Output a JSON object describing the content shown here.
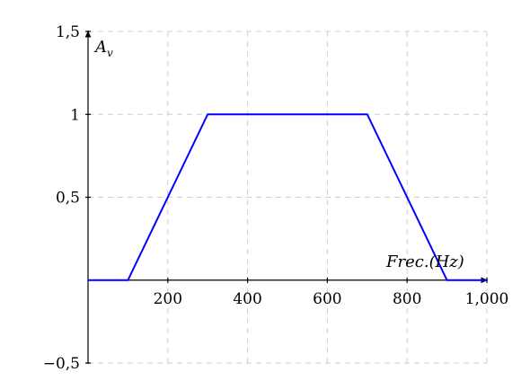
{
  "chart_data": {
    "type": "line",
    "title": "",
    "xlabel_main": "Frec.",
    "xlabel_unit": "(Hz)",
    "ylabel_main": "A",
    "ylabel_sub": "v",
    "xlim": [
      0,
      1000
    ],
    "ylim": [
      -0.5,
      1.5
    ],
    "x_ticks": [
      200,
      400,
      600,
      800,
      1000
    ],
    "x_tick_labels": [
      "200",
      "400",
      "600",
      "800",
      "1,000"
    ],
    "y_ticks": [
      -0.5,
      0.5,
      1,
      1.5
    ],
    "y_tick_labels": [
      "−0,5",
      "0,5",
      "1",
      "1,5"
    ],
    "x_grid": [
      200,
      400,
      600,
      800,
      1000
    ],
    "y_grid": [
      -0.5,
      0.5,
      1,
      1.5
    ],
    "grid": true,
    "series": [
      {
        "color": "#0000ff",
        "x": [
          0,
          100,
          300,
          700,
          900,
          1000
        ],
        "y": [
          0,
          0,
          1,
          1,
          0,
          0
        ]
      }
    ]
  }
}
